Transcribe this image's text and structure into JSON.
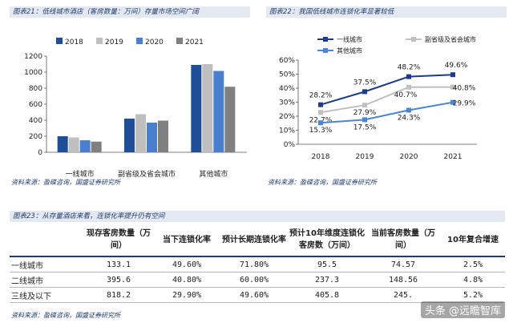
{
  "fig21": {
    "title": "图表21：低线城市酒店（客房数量：万间）存量市场空间广阔",
    "source": "资料来源：盈碟咨询，国盛证券研究所"
  },
  "fig22": {
    "title": "图表22：我国低线城市连锁化率显著较低",
    "source": "资料来源：盈碟咨询，国盛证券研究所"
  },
  "fig23": {
    "title": "图表23：从存量酒店来看，连锁化率提升仍有空间",
    "source": "资料来源：盈碟咨询，国盛证券研究所",
    "headers": [
      "",
      "现存客房数量（万间）",
      "当下连锁化率",
      "预计长期连锁化率",
      "预计10年维度连锁化客房数（万间）",
      "当前客房数量（万间）",
      "10年复合增速"
    ],
    "rows": [
      [
        "一线城市",
        "133.1",
        "49.60%",
        "71.80%",
        "95.5",
        "74.57",
        "2.5%"
      ],
      [
        "二线城市",
        "395.6",
        "40.80%",
        "60.00%",
        "237.3",
        "148.56",
        "4.8%"
      ],
      [
        "三线及以下",
        "818.2",
        "29.90%",
        "49.60%",
        "405.8",
        "245.",
        "5.2%"
      ]
    ]
  },
  "watermark": "头条 @远瞻智库",
  "chart_data": [
    {
      "type": "bar",
      "categories": [
        "一线城市",
        "副省级及省会城市",
        "其他城市"
      ],
      "series": [
        {
          "name": "2018",
          "color": "#1f4e99",
          "values": [
            200,
            420,
            1090
          ]
        },
        {
          "name": "2019",
          "color": "#bfbfbf",
          "values": [
            185,
            475,
            1100
          ]
        },
        {
          "name": "2020",
          "color": "#4a7fd0",
          "values": [
            150,
            370,
            1015
          ]
        },
        {
          "name": "2021",
          "color": "#808080",
          "values": [
            133,
            395,
            818
          ]
        }
      ],
      "yticks": [
        "0",
        "200",
        "400",
        "600",
        "800",
        "1000",
        "1200"
      ],
      "ylim": [
        0,
        1200
      ],
      "legend": "top"
    },
    {
      "type": "line",
      "categories": [
        "2018",
        "2019",
        "2020",
        "2021"
      ],
      "series": [
        {
          "name": "一线城市",
          "color": "#1f3b8a",
          "values": [
            28.2,
            37.5,
            48.2,
            49.6
          ],
          "labels": [
            "28.2%",
            "37.5%",
            "48.2%",
            "49.6%"
          ]
        },
        {
          "name": "副省级及省会城市",
          "color": "#c0c0c0",
          "values": [
            22.7,
            27.9,
            40.7,
            40.8
          ],
          "labels": [
            "22.7%",
            "27.9%",
            "40.7%",
            "40.8%"
          ]
        },
        {
          "name": "其他城市",
          "color": "#4a86d6",
          "values": [
            15.3,
            17.5,
            24.3,
            29.9
          ],
          "labels": [
            "15.3%",
            "17.5%",
            "24.3%",
            "29.9%"
          ]
        }
      ],
      "yticks": [
        "0%",
        "10%",
        "20%",
        "30%",
        "40%",
        "50%",
        "60%"
      ],
      "ylim": [
        0,
        60
      ],
      "legend": "top"
    }
  ]
}
